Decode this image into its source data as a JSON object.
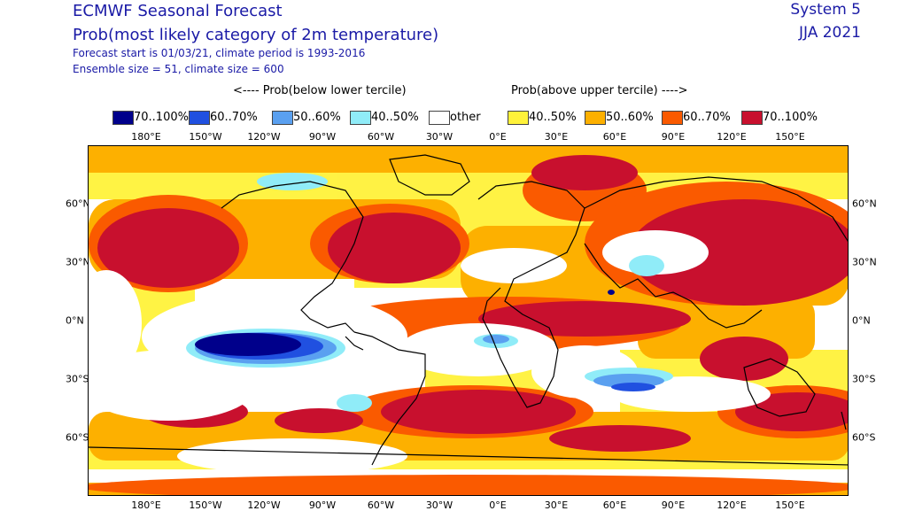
{
  "header": {
    "title": "ECMWF Seasonal Forecast",
    "subtitle": "Prob(most likely category of 2m temperature)",
    "forecast_line": "Forecast start is 01/03/21, climate period is 1993-2016",
    "ensemble_line": "Ensemble size = 51, climate size = 600",
    "system": "System 5",
    "season": "JJA 2021"
  },
  "legend": {
    "below_heading": "<---- Prob(below lower tercile)",
    "above_heading": "Prob(above upper tercile) ---->",
    "items": [
      {
        "label": "70..100%",
        "color": "#00008b"
      },
      {
        "label": "60..70%",
        "color": "#2050e0"
      },
      {
        "label": "50..60%",
        "color": "#5aa0f0"
      },
      {
        "label": "40..50%",
        "color": "#90ecf8"
      },
      {
        "label": "other",
        "color": "#ffffff"
      },
      {
        "label": "40..50%",
        "color": "#fff23a"
      },
      {
        "label": "50..60%",
        "color": "#fdb000"
      },
      {
        "label": "60..70%",
        "color": "#fa5a00"
      },
      {
        "label": "70..100%",
        "color": "#c8102e"
      }
    ]
  },
  "axes": {
    "lon_labels": [
      "180°E",
      "150°W",
      "120°W",
      "90°W",
      "60°W",
      "30°W",
      "0°E",
      "30°E",
      "60°E",
      "90°E",
      "120°E",
      "150°E"
    ],
    "lat_labels": [
      "60°N",
      "30°N",
      "0°N",
      "30°S",
      "60°S"
    ]
  }
}
